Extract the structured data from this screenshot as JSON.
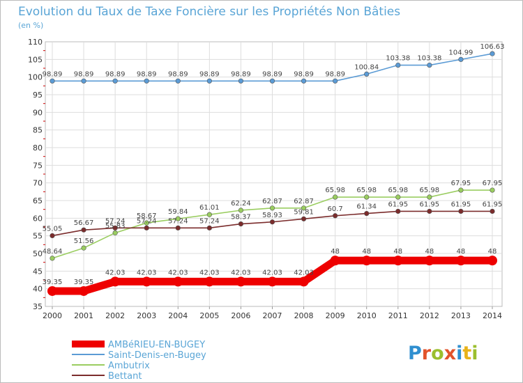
{
  "title": "Evolution du Taux de Taxe Foncière sur les Propriétés Non Bâties",
  "unit_label": "(en %)",
  "brand": {
    "letters": [
      "P",
      "r",
      "o",
      "x",
      "i",
      "t",
      "i"
    ],
    "colors": [
      "#2f8fd0",
      "#e2532b",
      "#9bbf2e",
      "#e2532b",
      "#2f8fd0",
      "#e8b31a",
      "#9bbf2e"
    ]
  },
  "colors": {
    "background": "#ffffff",
    "frame": "#bbbbbb",
    "grid": "#dddddd",
    "title": "#5aa5d6",
    "axis_tick_red": "#cc0000"
  },
  "chart_data": {
    "type": "line",
    "title": "Evolution du Taux de Taxe Foncière sur les Propriétés Non Bâties",
    "ylabel": "(en %)",
    "xlabel": "",
    "x": [
      "2000",
      "2001",
      "2002",
      "2003",
      "2004",
      "2005",
      "2006",
      "2007",
      "2008",
      "2009",
      "2010",
      "2011",
      "2012",
      "2013",
      "2014"
    ],
    "ylim": [
      35,
      110
    ],
    "yticks": [
      35,
      40,
      45,
      50,
      55,
      60,
      65,
      70,
      75,
      80,
      85,
      90,
      95,
      100,
      105,
      110
    ],
    "grid": true,
    "legend_position": "bottom-left",
    "series": [
      {
        "name": "AMBéRIEU-EN-BUGEY",
        "color": "#ee0000",
        "emphasis": true,
        "values": [
          39.35,
          39.35,
          42.03,
          42.03,
          42.03,
          42.03,
          42.03,
          42.03,
          42.03,
          48,
          48,
          48,
          48,
          48,
          48
        ],
        "labels": [
          "39.35",
          "39.35",
          "42.03",
          "42.03",
          "42.03",
          "42.03",
          "42.03",
          "42.03",
          "42.03",
          "48",
          "48",
          "48",
          "48",
          "48",
          "48"
        ]
      },
      {
        "name": "Saint-Denis-en-Bugey",
        "color": "#5b9bd5",
        "values": [
          98.89,
          98.89,
          98.89,
          98.89,
          98.89,
          98.89,
          98.89,
          98.89,
          98.89,
          98.89,
          100.84,
          103.38,
          103.38,
          104.99,
          106.63
        ],
        "labels": [
          "98.89",
          "98.89",
          "98.89",
          "98.89",
          "98.89",
          "98.89",
          "98.89",
          "98.89",
          "98.89",
          "98.89",
          "100.84",
          "103.38",
          "103.38",
          "104.99",
          "106.63"
        ]
      },
      {
        "name": "Ambutrix",
        "color": "#9acd60",
        "values": [
          48.64,
          51.56,
          55.83,
          58.67,
          59.84,
          61.01,
          62.24,
          62.87,
          62.87,
          65.98,
          65.98,
          65.98,
          65.98,
          67.95,
          67.95
        ],
        "labels": [
          "48.64",
          "51.56",
          "55.83",
          "58.67",
          "59.84",
          "61.01",
          "62.24",
          "62.87",
          "62.87",
          "65.98",
          "65.98",
          "65.98",
          "65.98",
          "67.95",
          "67.95"
        ]
      },
      {
        "name": "Bettant",
        "color": "#7b2c2c",
        "values": [
          55.05,
          56.67,
          57.24,
          57.24,
          57.24,
          57.24,
          58.37,
          58.93,
          59.81,
          60.7,
          61.34,
          61.95,
          61.95,
          61.95,
          61.95
        ],
        "labels": [
          "55.05",
          "56.67",
          "57.24",
          "57.24",
          "57.24",
          "57.24",
          "58.37",
          "58.93",
          "59.81",
          "60.7",
          "61.34",
          "61.95",
          "61.95",
          "61.95",
          "61.95"
        ]
      }
    ]
  }
}
